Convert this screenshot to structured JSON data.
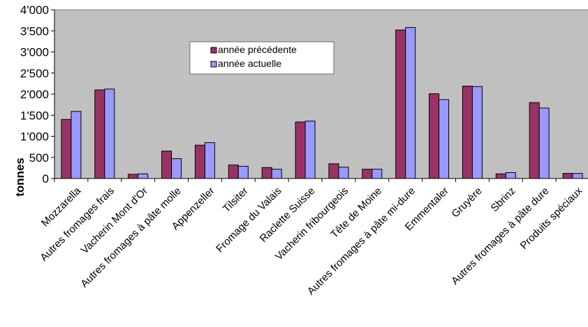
{
  "colors": {
    "plot_background": "#c0c0c0",
    "series_previous": "#993366",
    "series_current": "#9999ff",
    "bar_outline": "#000000"
  },
  "chart_data": {
    "type": "bar",
    "title": "",
    "xlabel": "",
    "ylabel": "tonnes",
    "ylim": [
      0,
      4000
    ],
    "yticks": [
      0,
      500,
      1000,
      1500,
      2000,
      2500,
      3000,
      3500,
      4000
    ],
    "ytick_labels": [
      "0",
      "500",
      "1'000",
      "1'500",
      "2'000",
      "2'500",
      "3'000",
      "3'500",
      "4'000"
    ],
    "grid": false,
    "legend_position": "upper-center",
    "categories": [
      "Mozzarella",
      "Autres fromages frais",
      "Vacherin Mont d'Or",
      "Autres fromages à pâte molle",
      "Appenzeller",
      "Tilsiter",
      "Fromage du Valais",
      "Raclette Suisse",
      "Vacherin fribourgeois",
      "Tête de Moine",
      "Autres fromages à pâte mi-dure",
      "Emmentaler",
      "Gruyère",
      "Sbrinz",
      "Autres fromages à pâte dure",
      "Produits spéciaux"
    ],
    "series": [
      {
        "name": "année précédente",
        "values": [
          1400,
          2100,
          100,
          650,
          790,
          320,
          260,
          1340,
          350,
          220,
          3520,
          2010,
          2190,
          110,
          1800,
          120
        ]
      },
      {
        "name": "année actuelle",
        "values": [
          1590,
          2120,
          110,
          470,
          850,
          290,
          220,
          1360,
          270,
          220,
          3580,
          1870,
          2180,
          140,
          1670,
          120
        ]
      }
    ]
  }
}
